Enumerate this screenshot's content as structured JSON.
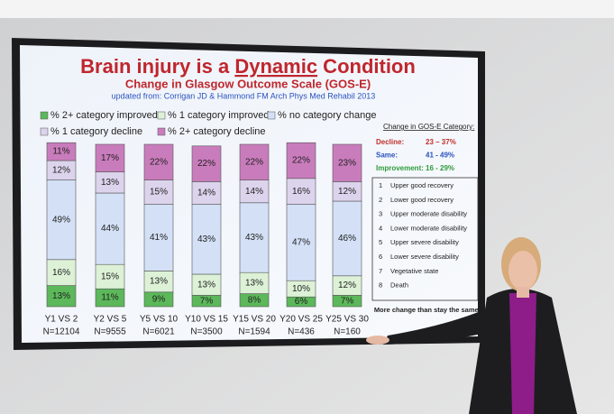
{
  "chart_data": {
    "type": "stacked_bar",
    "title_parts": [
      "Brain injury is a ",
      "Dynamic",
      " Condition"
    ],
    "subtitle": "Change in Glasgow Outcome Scale (GOS-E)",
    "source": "updated from: Corrigan JD & Hammond FM Arch Phys Med Rehabil 2013",
    "categories": [
      "Y1 VS 2",
      "Y2 VS 5",
      "Y5 VS 10",
      "Y10 VS 15",
      "Y15 VS 20",
      "Y20 VS 25",
      "Y25 VS 30"
    ],
    "sample_sizes": [
      "N=12104",
      "N=9555",
      "N=6021",
      "N=3500",
      "N=1594",
      "N=436",
      "N=160"
    ],
    "series": [
      {
        "name": "% 2+ category improved",
        "color": "#5cb85a",
        "values": [
          13,
          11,
          9,
          7,
          8,
          6,
          7
        ],
        "value_labels": [
          "13%",
          "11%",
          "9%",
          "7%",
          "8%",
          "6%",
          "7%"
        ]
      },
      {
        "name": "% 1 category improved",
        "color": "#dcf1d6",
        "values": [
          16,
          15,
          13,
          13,
          13,
          10,
          12
        ],
        "value_labels": [
          "16%",
          "15%",
          "13%",
          "13%",
          "13%",
          "10%",
          "12%"
        ]
      },
      {
        "name": "% no category change",
        "color": "#d3e0f6",
        "values": [
          49,
          44,
          41,
          43,
          43,
          47,
          46
        ],
        "value_labels": [
          "49%",
          "44%",
          "41%",
          "43%",
          "43%",
          "47%",
          "46%"
        ]
      },
      {
        "name": "% 1 category decline",
        "color": "#dcd3ec",
        "values": [
          12,
          13,
          15,
          14,
          14,
          16,
          12
        ],
        "value_labels": [
          "12%",
          "13%",
          "15%",
          "14%",
          "14%",
          "16%",
          "12%"
        ]
      },
      {
        "name": "% 2+ category decline",
        "color": "#c97cbc",
        "values": [
          11,
          17,
          22,
          22,
          22,
          22,
          23
        ],
        "value_labels": [
          "11%",
          "17%",
          "22%",
          "22%",
          "22%",
          "22%",
          "23%"
        ]
      }
    ],
    "panel": {
      "heading": "Change in GOS-E Category:",
      "ranges": [
        {
          "label": "Decline:",
          "range": "23 – 37%",
          "color": "#c0302b"
        },
        {
          "label": "Same:",
          "range": "41 - 49%",
          "color": "#2a52be"
        },
        {
          "label": "Improvement:",
          "range": "16 - 29%",
          "color": "#2e9a3a"
        }
      ],
      "scale": [
        {
          "number": "1",
          "label": "Upper good recovery"
        },
        {
          "number": "2",
          "label": "Lower good recovery"
        },
        {
          "number": "3",
          "label": "Upper moderate disability"
        },
        {
          "number": "4",
          "label": "Lower moderate disability"
        },
        {
          "number": "5",
          "label": "Upper severe disability"
        },
        {
          "number": "6",
          "label": "Lower severe disability"
        },
        {
          "number": "7",
          "label": "Vegetative state"
        },
        {
          "number": "8",
          "label": "Death"
        }
      ],
      "footer": "More change than stay the same!"
    }
  }
}
